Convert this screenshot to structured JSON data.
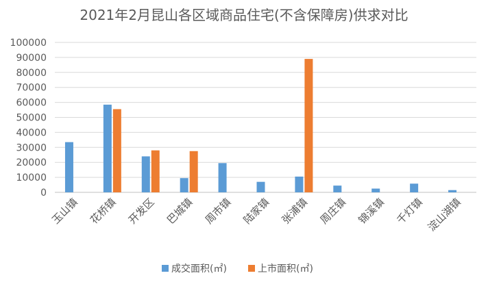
{
  "chart_data": {
    "type": "bar",
    "title": "2021年2月昆山各区域商品住宅(不含保障房)供求对比",
    "categories": [
      "玉山镇",
      "花桥镇",
      "开发区",
      "巴城镇",
      "周市镇",
      "陆家镇",
      "张浦镇",
      "周庄镇",
      "锦溪镇",
      "千灯镇",
      "淀山湖镇"
    ],
    "series": [
      {
        "name": "成交面积(㎡)",
        "color": "#5B9BD5",
        "values": [
          33500,
          58500,
          24000,
          9500,
          19500,
          7000,
          10500,
          4500,
          2500,
          5800,
          1500
        ]
      },
      {
        "name": "上市面积(㎡)",
        "color": "#ED7D31",
        "values": [
          null,
          55500,
          28000,
          27500,
          null,
          null,
          89000,
          null,
          null,
          null,
          null
        ]
      }
    ],
    "yticks": [
      "0",
      "10000",
      "20000",
      "30000",
      "40000",
      "50000",
      "60000",
      "70000",
      "80000",
      "90000",
      "100000"
    ],
    "ylim": [
      0,
      100000
    ],
    "grid": true,
    "legend_position": "bottom"
  }
}
